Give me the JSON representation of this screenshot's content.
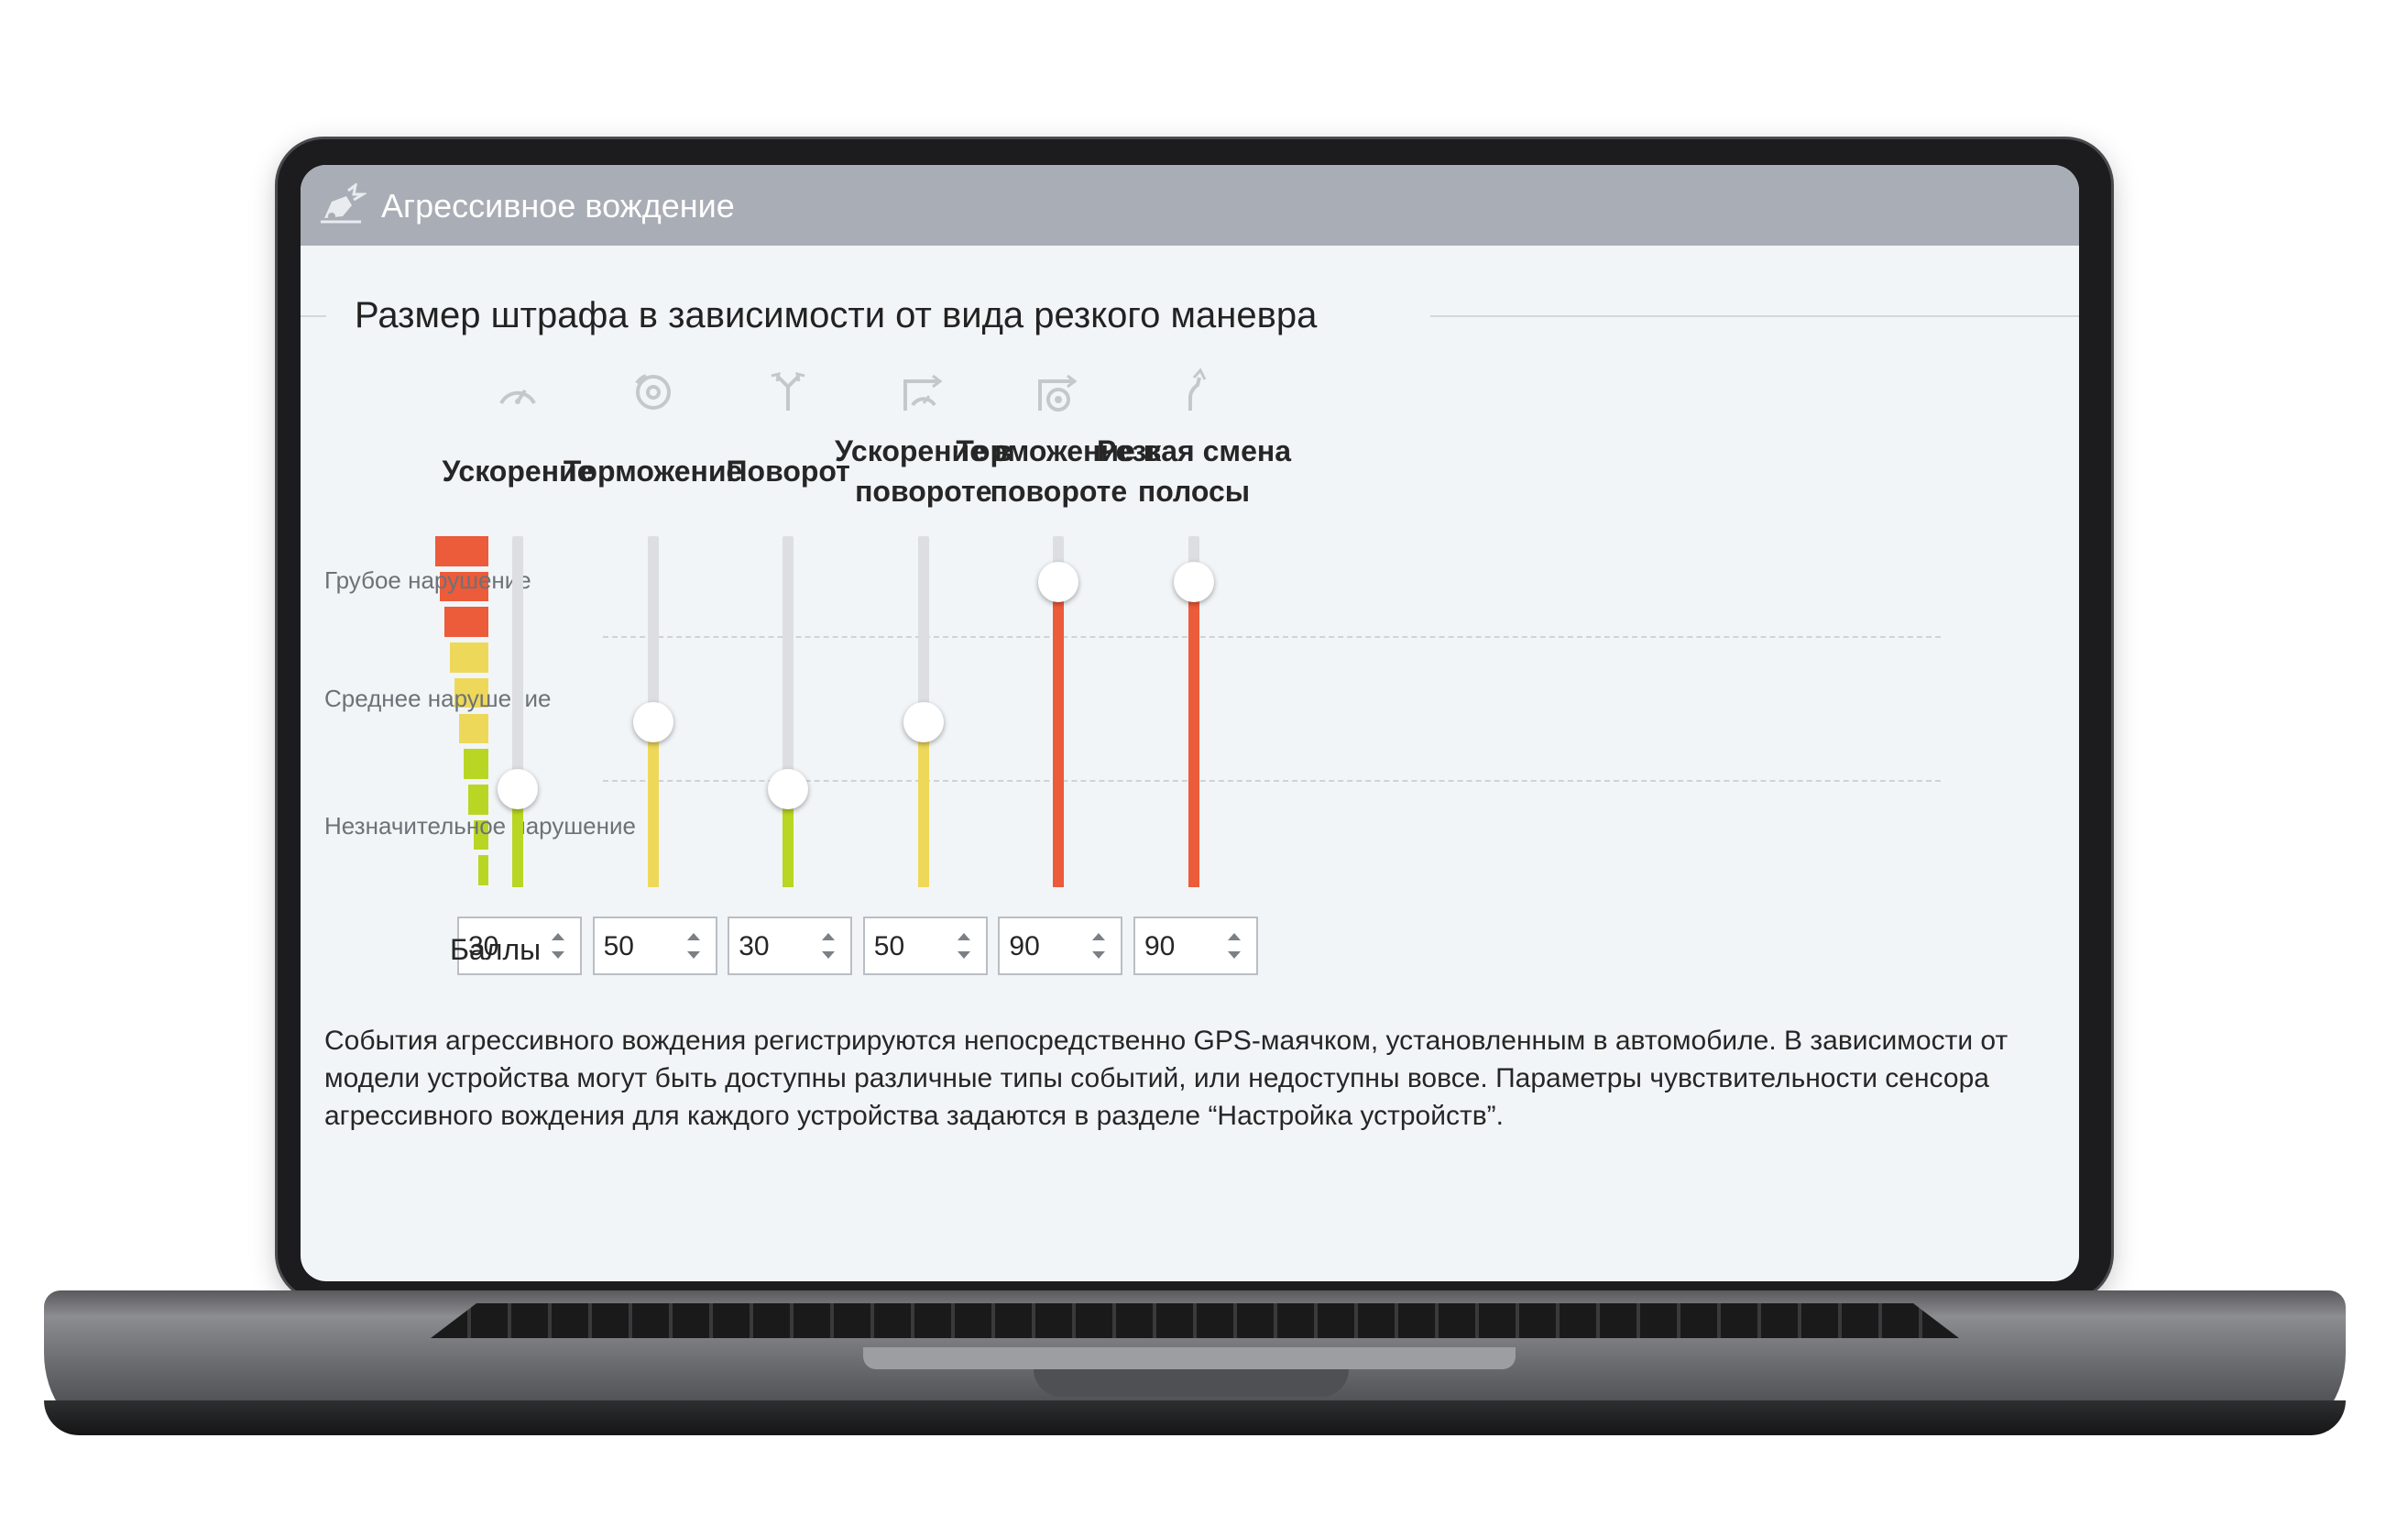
{
  "window": {
    "title": "Агрессивное вождение"
  },
  "section": {
    "title": "Размер штрафа в зависимости от вида резкого маневра"
  },
  "scale": {
    "levels": [
      "Грубое нарушение",
      "Среднее нарушение",
      "Незначительное нарушение"
    ]
  },
  "points_label": "Баллы",
  "colors": {
    "header": "#a9adb5",
    "severe": "#ec5b3a",
    "medium": "#eed85a",
    "minor": "#b9d624",
    "track": "#dcdee1"
  },
  "maneuvers": [
    {
      "icon": "speedometer-icon",
      "label": "Ускорение",
      "value": "30",
      "level": 0.28,
      "color": "#b9d624"
    },
    {
      "icon": "brake-icon",
      "label": "Торможение",
      "value": "50",
      "level": 0.47,
      "color": "#eed85a"
    },
    {
      "icon": "turn-icon",
      "label": "Поворот",
      "value": "30",
      "level": 0.28,
      "color": "#b9d624"
    },
    {
      "icon": "turn-acceleration-icon",
      "label": "Ускорение в повороте",
      "value": "50",
      "level": 0.47,
      "color": "#eed85a"
    },
    {
      "icon": "turn-braking-icon",
      "label": "Торможение в повороте",
      "value": "90",
      "level": 0.87,
      "color": "#ec5b3a"
    },
    {
      "icon": "lane-change-icon",
      "label": "Резкая смена полосы",
      "value": "90",
      "level": 0.87,
      "color": "#ec5b3a"
    }
  ],
  "description": "События агрессивного вождения регистрируются непосредственно GPS-маячком, установленным в автомобиле. В зависимости от модели устройства могут быть доступны различные типы событий, или недоступны вовсе. Параметры чувствительности сенсора агрессивного вождения для каждого устройства задаются в разделе “Настройка устройств”."
}
